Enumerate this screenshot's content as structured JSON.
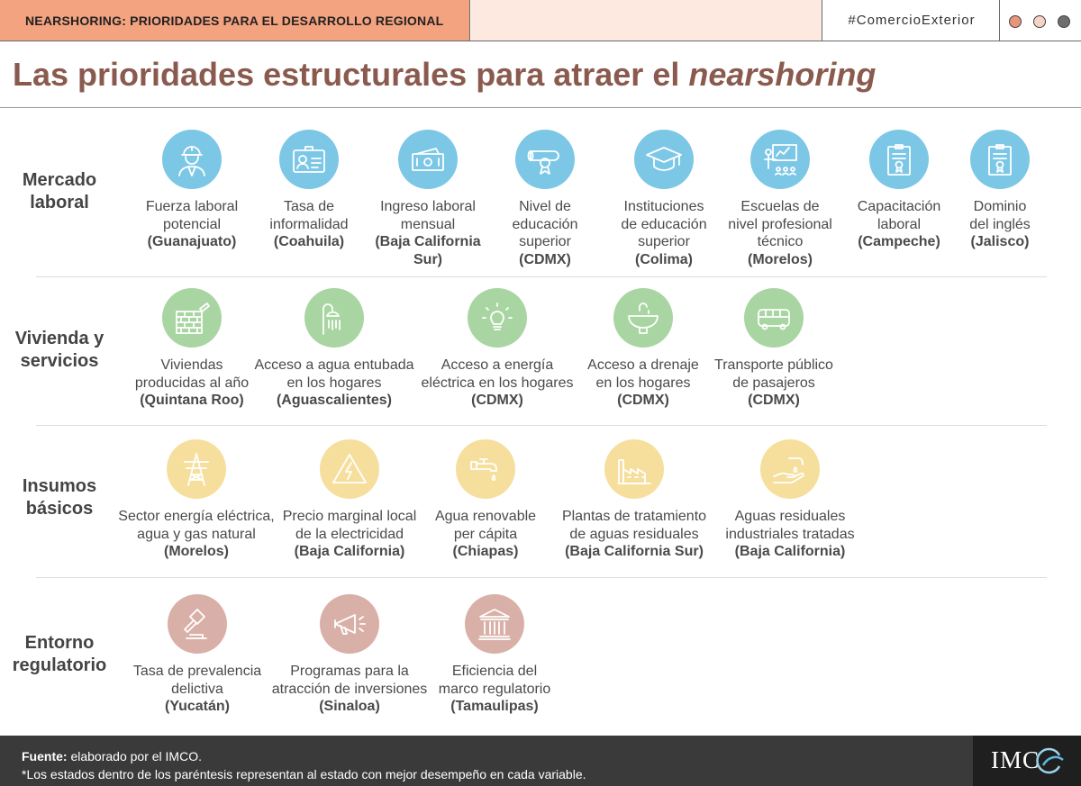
{
  "header": {
    "tag": "NEARSHORING: PRIORIDADES PARA EL DESARROLLO REGIONAL",
    "hashtag": "#ComercioExterior",
    "dot_colors": [
      "#e8967a",
      "#f6d3c4",
      "#6e6e6e"
    ]
  },
  "title": {
    "main": "Las prioridades estructurales para atraer el ",
    "italic": "nearshoring"
  },
  "colors": {
    "blue": "#7dc7e6",
    "green": "#a9d5a2",
    "yellow": "#f6df9d",
    "rose": "#d9b0a8",
    "tag": "#f4a380",
    "title": "#8a5a4e"
  },
  "sections": [
    {
      "label": [
        "Mercado",
        "laboral"
      ],
      "items": [
        {
          "icon": "worker-icon",
          "label": [
            "Fuerza laboral",
            "potencial"
          ],
          "state": "(Guanajuato)"
        },
        {
          "icon": "id-card-icon",
          "label": [
            "Tasa de",
            "informalidad"
          ],
          "state": "(Coahuila)"
        },
        {
          "icon": "banknote-icon",
          "label": [
            "Ingreso laboral",
            "mensual"
          ],
          "state": [
            "(Baja California",
            "Sur)"
          ]
        },
        {
          "icon": "diploma-icon",
          "label": [
            "Nivel de",
            "educación",
            "superior"
          ],
          "state": "(CDMX)"
        },
        {
          "icon": "graduation-cap-icon",
          "label": [
            "Instituciones",
            "de educación",
            "superior"
          ],
          "state": "(Colima)"
        },
        {
          "icon": "teacher-board-icon",
          "label": [
            "Escuelas de",
            "nivel profesional",
            "técnico"
          ],
          "state": "(Morelos)"
        },
        {
          "icon": "certificate-icon",
          "label": [
            "Capacitación",
            "laboral"
          ],
          "state": "(Campeche)"
        },
        {
          "icon": "certificate-icon",
          "label": [
            "Dominio",
            "del inglés"
          ],
          "state": "(Jalisco)"
        }
      ]
    },
    {
      "label": [
        "Vivienda y",
        "servicios"
      ],
      "items": [
        {
          "icon": "brick-wall-icon",
          "label": [
            "Viviendas",
            "producidas al año"
          ],
          "state": "(Quintana Roo)"
        },
        {
          "icon": "shower-icon",
          "label": [
            "Acceso a agua entubada",
            "en los hogares"
          ],
          "state": "(Aguascalientes)"
        },
        {
          "icon": "light-bulb-icon",
          "label": [
            "Acceso a energía",
            "eléctrica en los hogares"
          ],
          "state": "(CDMX)"
        },
        {
          "icon": "sink-icon",
          "label": [
            "Acceso a drenaje",
            "en los hogares"
          ],
          "state": "(CDMX)"
        },
        {
          "icon": "bus-icon",
          "label": [
            "Transporte público",
            "de pasajeros"
          ],
          "state": "(CDMX)"
        }
      ]
    },
    {
      "label": [
        "Insumos",
        "básicos"
      ],
      "items": [
        {
          "icon": "power-tower-icon",
          "label": [
            "Sector energía eléctrica,",
            "agua y gas natural"
          ],
          "state": "(Morelos)"
        },
        {
          "icon": "high-voltage-icon",
          "label": [
            "Precio marginal local",
            "de la electricidad"
          ],
          "state": "(Baja California)"
        },
        {
          "icon": "faucet-icon",
          "label": [
            "Agua renovable",
            "per cápita"
          ],
          "state": "(Chiapas)"
        },
        {
          "icon": "factory-icon",
          "label": [
            "Plantas de tratamiento",
            "de aguas residuales"
          ],
          "state": "(Baja California Sur)"
        },
        {
          "icon": "water-hand-icon",
          "label": [
            "Aguas residuales",
            "industriales tratadas"
          ],
          "state": "(Baja California)"
        }
      ]
    },
    {
      "label": [
        "Entorno",
        "regulatorio"
      ],
      "items": [
        {
          "icon": "gavel-icon",
          "label": [
            "Tasa de prevalencia",
            "delictiva"
          ],
          "state": "(Yucatán)"
        },
        {
          "icon": "megaphone-icon",
          "label": [
            "Programas para la",
            "atracción de inversiones"
          ],
          "state": "(Sinaloa)"
        },
        {
          "icon": "government-building-icon",
          "label": [
            "Eficiencia del",
            "marco regulatorio"
          ],
          "state": "(Tamaulipas)"
        }
      ]
    }
  ],
  "footer": {
    "source_label": "Fuente:",
    "source_text": " elaborado por el IMCO.",
    "note": "*Los estados dentro de los paréntesis representan al estado con mejor desempeño en cada variable.",
    "logo": "IMC"
  }
}
